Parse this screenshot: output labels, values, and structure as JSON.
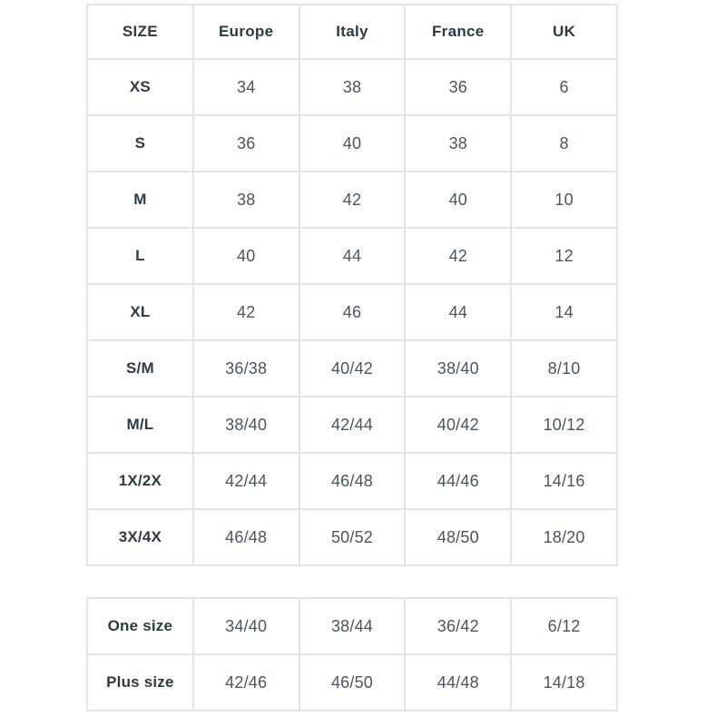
{
  "main_table": {
    "headers": [
      "SIZE",
      "Europe",
      "Italy",
      "France",
      "UK"
    ],
    "rows": [
      [
        "XS",
        "34",
        "38",
        "36",
        "6"
      ],
      [
        "S",
        "36",
        "40",
        "38",
        "8"
      ],
      [
        "M",
        "38",
        "42",
        "40",
        "10"
      ],
      [
        "L",
        "40",
        "44",
        "42",
        "12"
      ],
      [
        "XL",
        "42",
        "46",
        "44",
        "14"
      ],
      [
        "S/M",
        "36/38",
        "40/42",
        "38/40",
        "8/10"
      ],
      [
        "M/L",
        "38/40",
        "42/44",
        "40/42",
        "10/12"
      ],
      [
        "1X/2X",
        "42/44",
        "46/48",
        "44/46",
        "14/16"
      ],
      [
        "3X/4X",
        "46/48",
        "50/52",
        "48/50",
        "18/20"
      ]
    ]
  },
  "secondary_table": {
    "rows": [
      [
        "One size",
        "34/40",
        "38/44",
        "36/42",
        "6/12"
      ],
      [
        "Plus size",
        "42/46",
        "46/50",
        "44/48",
        "14/18"
      ]
    ]
  },
  "colors": {
    "background": "#ffffff",
    "border": "#e4e4e4",
    "heading_text": "#303a44",
    "data_text": "#4b5560"
  }
}
